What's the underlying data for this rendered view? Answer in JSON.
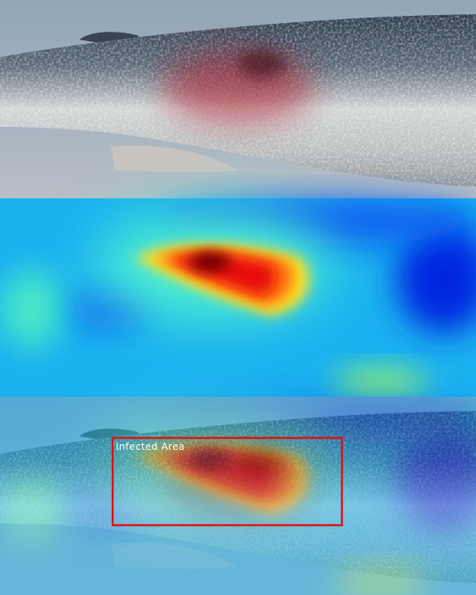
{
  "annotation": {
    "label": "Infected Area"
  }
}
